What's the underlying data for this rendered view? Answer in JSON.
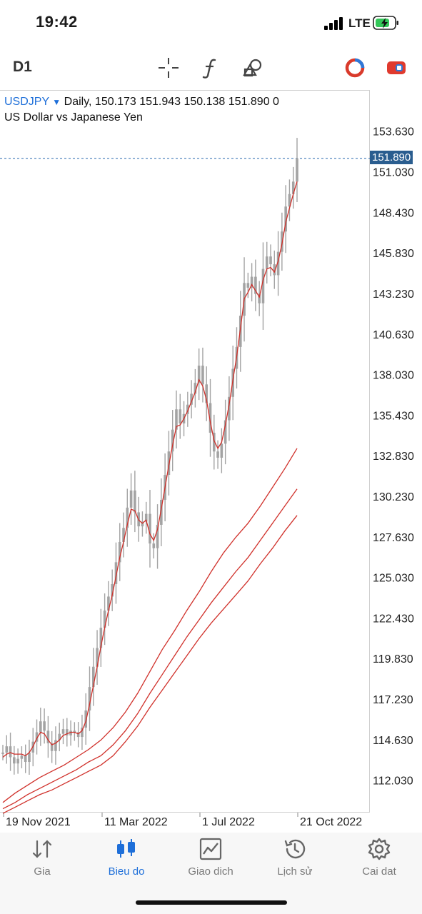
{
  "status": {
    "time": "19:42",
    "carrier": "LTE"
  },
  "toolbar": {
    "timeframe": "D1",
    "icons": [
      "crosshair-icon",
      "function-icon",
      "objects-icon",
      "chart-type-icon",
      "trade-icon"
    ]
  },
  "chart": {
    "symbol": "USDJPY",
    "period": "Daily,",
    "ohlc": "150.173 151.943 150.138 151.890 0",
    "description": "US Dollar vs Japanese Yen",
    "price_tag": "151.890"
  },
  "chart_data": {
    "type": "candlestick",
    "ylim": [
      110.5,
      154.9
    ],
    "y_ticks": [
      "153.630",
      "151.030",
      "148.430",
      "145.830",
      "143.230",
      "140.630",
      "138.030",
      "135.430",
      "132.830",
      "130.230",
      "127.630",
      "125.030",
      "122.430",
      "119.830",
      "117.230",
      "114.630",
      "112.030"
    ],
    "x_ticks": [
      "19 Nov 2021",
      "11 Mar 2022",
      "1 Jul 2022",
      "21 Oct 2022"
    ],
    "last_price": 151.89,
    "price_series_color": "#a3a3a3",
    "ma_color": "#d0302a",
    "price": [
      113.8,
      114.2,
      113.5,
      113.1,
      113.4,
      113.6,
      113.2,
      113.8,
      114.5,
      115.1,
      115.8,
      115.2,
      114.4,
      113.9,
      114.6,
      115.0,
      115.3,
      114.9,
      115.2,
      115.1,
      114.8,
      115.4,
      116.5,
      118.0,
      119.3,
      120.5,
      121.8,
      122.9,
      123.8,
      124.6,
      126.0,
      127.3,
      128.2,
      129.5,
      130.6,
      129.2,
      128.3,
      128.6,
      129.1,
      127.2,
      126.9,
      128.4,
      130.0,
      131.6,
      133.1,
      134.5,
      135.8,
      134.9,
      135.5,
      136.1,
      136.8,
      137.5,
      138.6,
      137.4,
      136.2,
      134.3,
      133.1,
      132.7,
      133.6,
      135.1,
      136.6,
      138.4,
      139.8,
      141.8,
      143.9,
      143.6,
      144.3,
      143.2,
      142.6,
      144.8,
      145.6,
      145.1,
      144.4,
      145.9,
      147.2,
      148.8,
      149.6,
      150.4,
      151.89
    ],
    "ma_fast": [
      113.5,
      113.7,
      113.8,
      113.7,
      113.7,
      113.7,
      113.6,
      113.8,
      114.2,
      114.7,
      115.1,
      115.0,
      114.6,
      114.3,
      114.4,
      114.6,
      114.9,
      115.0,
      115.1,
      115.1,
      115.0,
      115.2,
      115.8,
      116.9,
      118.1,
      119.3,
      120.6,
      121.8,
      122.9,
      123.9,
      125.1,
      126.3,
      127.3,
      128.4,
      129.4,
      129.3,
      128.7,
      128.5,
      128.7,
      127.8,
      127.4,
      128.1,
      129.4,
      130.8,
      132.2,
      133.5,
      134.7,
      134.8,
      135.2,
      135.7,
      136.3,
      136.9,
      137.7,
      137.3,
      136.4,
      135.0,
      133.8,
      133.3,
      133.7,
      134.8,
      136.1,
      137.7,
      139.2,
      141.0,
      142.9,
      143.3,
      143.8,
      143.4,
      143.0,
      144.1,
      144.8,
      144.9,
      144.6,
      145.3,
      146.4,
      147.8,
      148.7,
      149.6,
      150.4
    ],
    "ma_mid": [
      110.6,
      111.2,
      111.7,
      112.2,
      112.6,
      113.0,
      113.5,
      114.0,
      114.6,
      115.4,
      116.4,
      117.6,
      119.0,
      120.4,
      121.6,
      122.9,
      124.1,
      125.4,
      126.6,
      127.6,
      128.5,
      129.6,
      130.8,
      132.0,
      133.3
    ],
    "ma_slow": [
      110.2,
      110.6,
      111.1,
      111.5,
      111.9,
      112.3,
      112.7,
      113.2,
      113.6,
      114.3,
      115.2,
      116.3,
      117.6,
      118.8,
      120.0,
      121.2,
      122.3,
      123.4,
      124.4,
      125.4,
      126.3,
      127.4,
      128.5,
      129.6,
      130.7
    ],
    "ma_slower": [
      109.9,
      110.3,
      110.7,
      111.1,
      111.4,
      111.8,
      112.2,
      112.6,
      113.0,
      113.6,
      114.5,
      115.5,
      116.7,
      117.8,
      118.9,
      120.0,
      121.1,
      122.1,
      123.0,
      123.9,
      124.8,
      125.9,
      126.9,
      128.0,
      129.0
    ]
  },
  "tabs": [
    {
      "label": "Gia",
      "icon": "quotes-icon",
      "active": false
    },
    {
      "label": "Bieu do",
      "icon": "chart-icon",
      "active": true
    },
    {
      "label": "Giao dich",
      "icon": "trade-icon",
      "active": false
    },
    {
      "label": "Lịch sử",
      "icon": "history-icon",
      "active": false
    },
    {
      "label": "Cai dat",
      "icon": "settings-icon",
      "active": false
    }
  ],
  "colors": {
    "accent": "#1e6fd9",
    "price_tag_bg": "#2a5d8f",
    "ma": "#d0302a",
    "candles": "#a3a3a3"
  }
}
